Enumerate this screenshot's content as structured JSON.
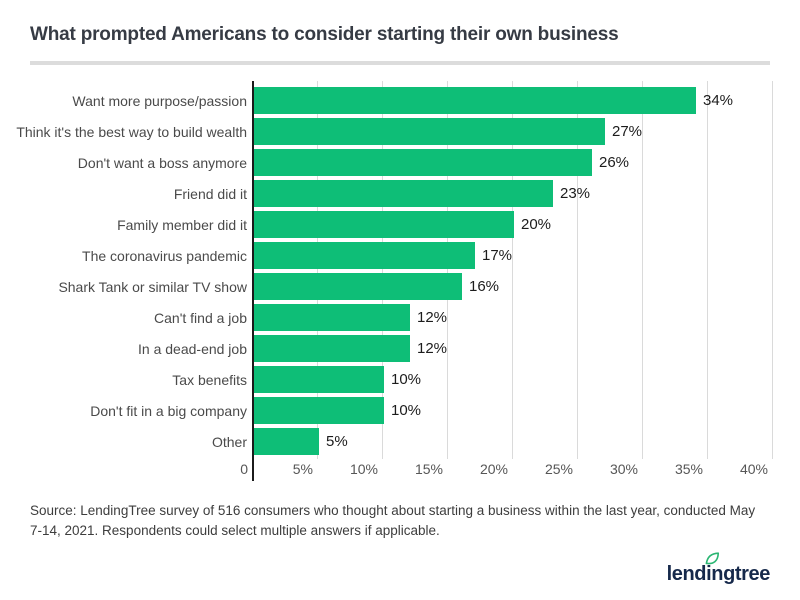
{
  "title": "What prompted Americans to consider starting their own business",
  "chart_data": {
    "type": "bar",
    "orientation": "horizontal",
    "title": "What prompted Americans to consider starting their own business",
    "categories": [
      "Want more purpose/passion",
      "Think it's the best way to build wealth",
      "Don't want a boss anymore",
      "Friend did it",
      "Family member did it",
      "The coronavirus pandemic",
      "Shark Tank or similar TV show",
      "Can't find a job",
      "In a dead-end job",
      "Tax benefits",
      "Don't fit in a big company",
      "Other"
    ],
    "values": [
      34,
      27,
      26,
      23,
      20,
      17,
      16,
      12,
      12,
      10,
      10,
      5
    ],
    "value_labels": [
      "34%",
      "27%",
      "26%",
      "23%",
      "20%",
      "17%",
      "16%",
      "12%",
      "12%",
      "10%",
      "10%",
      "5%"
    ],
    "x_ticks": [
      "0",
      "5%",
      "10%",
      "15%",
      "20%",
      "25%",
      "30%",
      "35%",
      "40%"
    ],
    "xlim": [
      0,
      40
    ],
    "grid": true,
    "legend": "none",
    "bar_color": "#0ebe77"
  },
  "source_note": "Source: LendingTree survey of 516 consumers who thought about starting a business within the last year, conducted May 7-14, 2021. Respondents could select multiple answers if applicable.",
  "logo": {
    "text": "lendingtree"
  },
  "colors": {
    "bar_green": "#0ebe77",
    "logo_navy": "#16294b",
    "leaf_green": "#2bb673",
    "gridline": "#dadada",
    "axis": "#1b1b1b",
    "divider": "#dcdcdc"
  }
}
